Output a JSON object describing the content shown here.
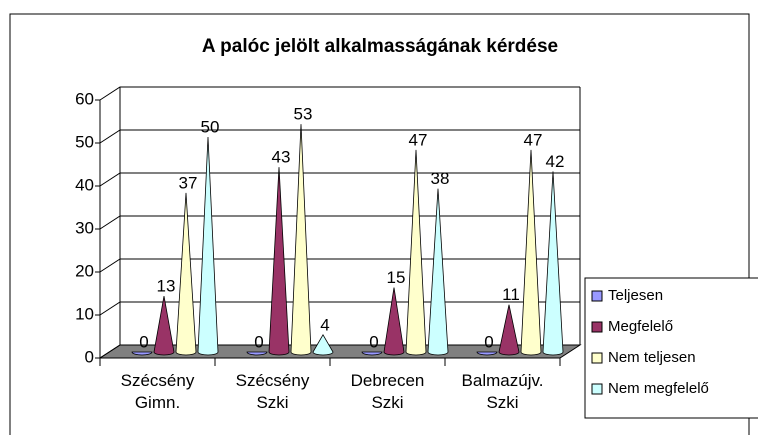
{
  "chart_data": {
    "type": "bar",
    "title": "A palóc jelölt alkalmasságának kérdése",
    "categories": [
      "Szécsény Gimn.",
      "Szécsény Szki",
      "Debrecen Szki",
      "Balmazújv. Szki"
    ],
    "series": [
      {
        "name": "Teljesen",
        "color": "#9999ff",
        "values": [
          0,
          0,
          0,
          0
        ]
      },
      {
        "name": "Megfelelő",
        "color": "#993366",
        "values": [
          13,
          43,
          15,
          11
        ]
      },
      {
        "name": "Nem teljesen",
        "color": "#ffffcc",
        "values": [
          37,
          53,
          47,
          47
        ]
      },
      {
        "name": "Nem megfelelő",
        "color": "#ccffff",
        "values": [
          50,
          4,
          38,
          42
        ]
      }
    ],
    "ylim": [
      0,
      60
    ],
    "yticks": [
      0,
      10,
      20,
      30,
      40,
      50,
      60
    ],
    "grid": true,
    "legend": "right"
  }
}
